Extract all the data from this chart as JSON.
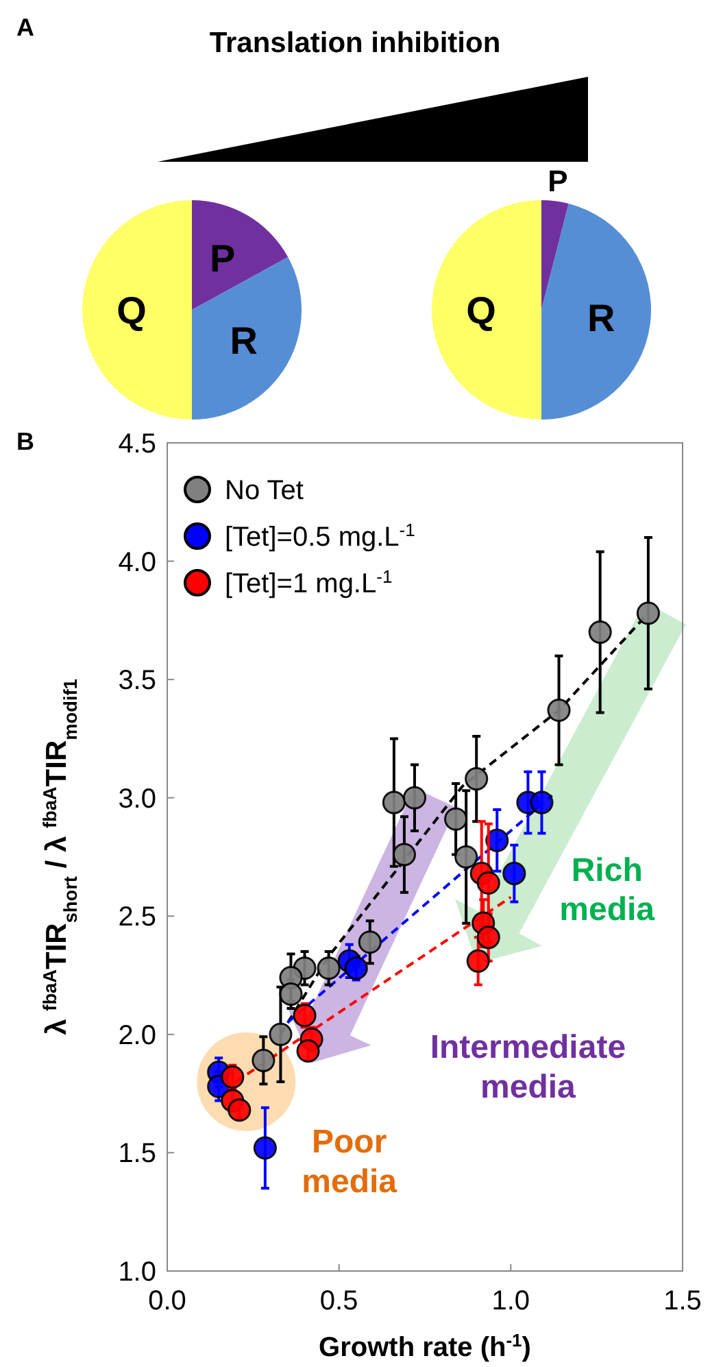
{
  "chart_data": [
    {
      "type": "pie",
      "title": "Translation inhibition",
      "annotations": [
        "A"
      ],
      "categories": [
        "P",
        "R",
        "Q"
      ],
      "values": [
        17,
        33,
        50
      ],
      "colors": [
        "#7030a0",
        "#558ed5",
        "#ffff66"
      ]
    },
    {
      "type": "pie",
      "categories": [
        "P",
        "R",
        "Q"
      ],
      "values": [
        4,
        46,
        50
      ],
      "colors": [
        "#7030a0",
        "#558ed5",
        "#ffff66"
      ]
    },
    {
      "type": "scatter",
      "xlabel": "Growth rate (h$^{-1}$)",
      "ylabel": "λ $^{fbaA}$TIR$_{short}$ / λ $^{fbaA}$TIR$_{modif1}$",
      "xlim": [
        0,
        1.5
      ],
      "ylim": [
        1,
        4.5
      ],
      "xticks": [
        {
          "value": 0,
          "label": "0.0"
        },
        0.5,
        {
          "value": 1,
          "label": "1.0"
        },
        1.5
      ],
      "yticks": [
        {
          "value": 1,
          "label": "1.0"
        },
        1.5,
        {
          "value": 2,
          "label": "2.0"
        },
        2.5,
        {
          "value": 3,
          "label": "3.0"
        },
        3.5,
        {
          "value": 4,
          "label": "4.0"
        },
        4.5
      ],
      "legend": "top left",
      "grid": false,
      "annotations": [
        "B",
        "Rich media",
        "Intermediate media",
        "Poor media"
      ],
      "series": [
        {
          "name": "No Tet",
          "color": "#808080",
          "marker": "circle",
          "x": [
            0.66,
            0.72,
            0.9,
            1.26,
            1.4,
            1.14,
            0.87,
            0.47,
            0.4,
            0.36,
            0.33,
            0.28,
            0.69,
            0.84,
            0.59,
            0.36
          ],
          "values": [
            2.98,
            3.0,
            3.08,
            3.7,
            3.78,
            3.37,
            2.75,
            2.28,
            2.28,
            2.24,
            2.0,
            1.89,
            2.76,
            2.91,
            2.39,
            2.17
          ],
          "errors": [
            0.27,
            0.14,
            0.18,
            0.34,
            0.32,
            0.23,
            0.28,
            0.07,
            0.07,
            0.1,
            0.2,
            0.1,
            0.16,
            0.15,
            0.09,
            0.06
          ]
        },
        {
          "name": "[Tet]=0.5 mg.L$^{-1}$",
          "color": "#0000ff",
          "marker": "circle",
          "x": [
            0.285,
            0.15,
            0.15,
            0.53,
            0.55,
            0.96,
            1.01,
            1.05,
            1.09
          ],
          "values": [
            1.52,
            1.84,
            1.78,
            2.31,
            2.28,
            2.82,
            2.68,
            2.98,
            2.98
          ],
          "errors": [
            0.17,
            0.06,
            0.06,
            0.07,
            0.05,
            0.13,
            0.12,
            0.13,
            0.13
          ]
        },
        {
          "name": "[Tet]=1 mg.L$^{-1}$",
          "color": "#ff0000",
          "marker": "circle",
          "x": [
            0.19,
            0.19,
            0.21,
            0.4,
            0.42,
            0.41,
            0.915,
            0.935,
            0.92,
            0.935,
            0.905
          ],
          "values": [
            1.82,
            1.72,
            1.68,
            2.08,
            1.98,
            1.93,
            2.68,
            2.64,
            2.47,
            2.41,
            2.31
          ],
          "errors": [
            0.05,
            0.04,
            0.04,
            0.05,
            0.05,
            0.04,
            0.22,
            0.25,
            0.1,
            0.1,
            0.1
          ]
        },
        {
          "type": "line",
          "color": "#000000",
          "line_style": "dashed",
          "marker": "none",
          "x": [
            0.33,
            0.47,
            0.86,
            1.14,
            1.4
          ],
          "values": [
            2.0,
            2.33,
            3.05,
            3.37,
            3.78
          ]
        },
        {
          "type": "line",
          "color": "#0000ff",
          "line_style": "dashed",
          "marker": "none",
          "x": [
            0.35,
            1.12
          ],
          "values": [
            2.05,
            3.01
          ]
        },
        {
          "type": "line",
          "color": "#ff0000",
          "line_style": "dashed",
          "marker": "none",
          "x": [
            0.2,
            1.0
          ],
          "values": [
            1.8,
            2.58
          ]
        }
      ]
    }
  ]
}
